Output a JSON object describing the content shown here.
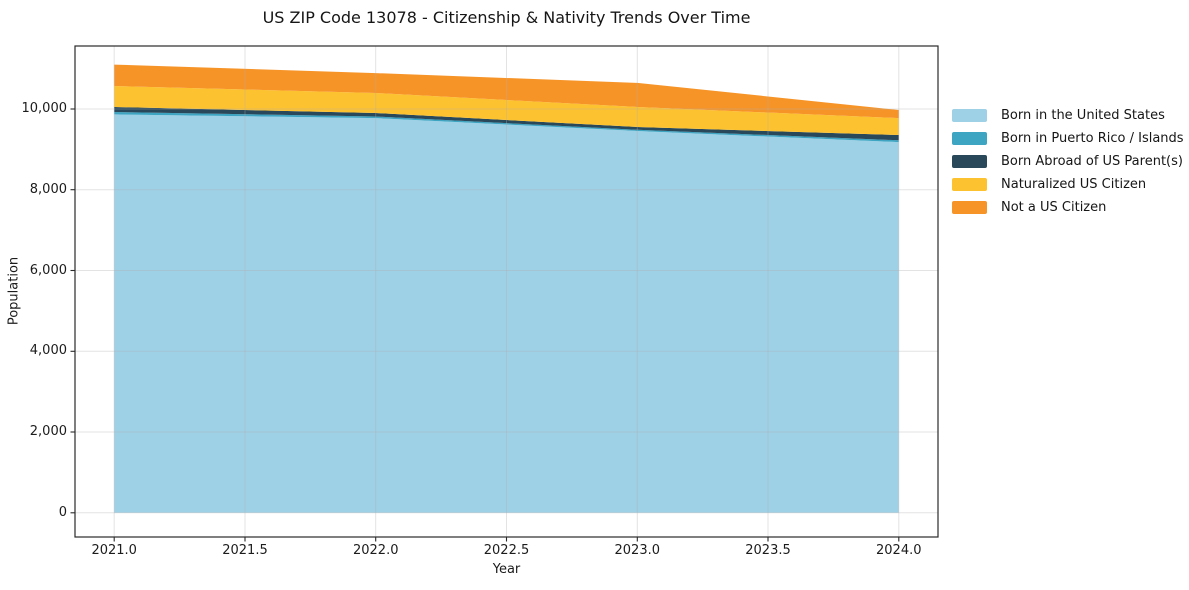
{
  "figure": {
    "background": "#ffffff",
    "text_color": "#1c1c1c",
    "spine_color": "#2a2a2a"
  },
  "chart_data": {
    "type": "area",
    "stacked": true,
    "title": "US ZIP Code 13078 - Citizenship & Nativity Trends Over Time",
    "xlabel": "Year",
    "ylabel": "Population",
    "x": [
      2021,
      2022,
      2023,
      2024
    ],
    "series": [
      {
        "name": "Born in the United States",
        "color": "#9ed0e6",
        "values": [
          9865,
          9775,
          9455,
          9180
        ]
      },
      {
        "name": "Born in Puerto Rico / Islands",
        "color": "#3da5c2",
        "values": [
          60,
          40,
          30,
          45
        ]
      },
      {
        "name": "Born Abroad of US Parent(s)",
        "color": "#29495b",
        "values": [
          125,
          85,
          70,
          130
        ]
      },
      {
        "name": "Naturalized US Citizen",
        "color": "#fdc22f",
        "values": [
          520,
          495,
          495,
          420
        ]
      },
      {
        "name": "Not a US Citizen",
        "color": "#f79428",
        "values": [
          530,
          495,
          595,
          200
        ]
      }
    ],
    "stack_totals": [
      11100,
      10890,
      10645,
      9975
    ],
    "xlim": [
      2020.85,
      2024.15
    ],
    "ylim": [
      -600,
      11560
    ],
    "xticks": [
      2021.0,
      2021.5,
      2022.0,
      2022.5,
      2023.0,
      2023.5,
      2024.0
    ],
    "xtick_labels": [
      "2021.0",
      "2021.5",
      "2022.0",
      "2022.5",
      "2023.0",
      "2023.5",
      "2024.0"
    ],
    "yticks": [
      0,
      2000,
      4000,
      6000,
      8000,
      10000
    ],
    "ytick_labels": [
      "0",
      "2,000",
      "4,000",
      "6,000",
      "8,000",
      "10,000"
    ],
    "grid": true,
    "grid_color": "#b0b0b0",
    "legend_position": "right-outside",
    "legend_frame": false
  }
}
